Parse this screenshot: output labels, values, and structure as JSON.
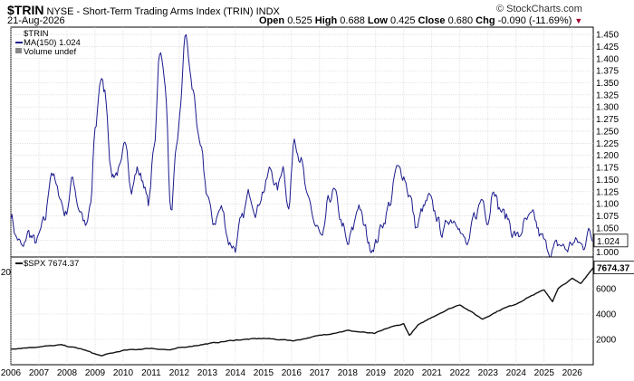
{
  "header": {
    "symbol": "$TRIN",
    "description": "NYSE - Short-Term Trading Arms Index (TRIN)",
    "exchange": "INDX",
    "brand": "© StockCharts.com",
    "date": "21-Aug-2026",
    "open_label": "Open",
    "open": "0.525",
    "high_label": "High",
    "high": "0.688",
    "low_label": "Low",
    "low": "0.425",
    "close_label": "Close",
    "close": "0.680",
    "chg_label": "Chg",
    "chg": "-0.090 (-11.69%)"
  },
  "colors": {
    "trin": "#1a1a8c",
    "spx": "#111111",
    "grid": "#d0d0d0",
    "arrow": "#a00030"
  },
  "chart_data": [
    {
      "type": "line",
      "panel": "upper",
      "legend": [
        "$TRIN",
        "MA(150) 1.024",
        "Volume undef"
      ],
      "ylim": [
        0.975,
        1.465
      ],
      "y_ticks": [
        1.0,
        1.025,
        1.05,
        1.075,
        1.1,
        1.125,
        1.15,
        1.175,
        1.2,
        1.225,
        1.25,
        1.275,
        1.3,
        1.325,
        1.35,
        1.375,
        1.4,
        1.425,
        1.45
      ],
      "last_value_label": "1.024",
      "x_ticks": [
        "2006",
        "2007",
        "2008",
        "2009",
        "2010",
        "2011",
        "2012",
        "2013",
        "2014",
        "2015",
        "2016",
        "2017",
        "2018",
        "2019",
        "2020",
        "2021",
        "2022",
        "2023",
        "2024",
        "2025",
        "2026"
      ],
      "xlim": [
        2006.0,
        2026.75
      ],
      "series": [
        {
          "name": "MA(150)",
          "x": [
            2006.0,
            2006.2,
            2006.45,
            2006.6,
            2006.9,
            2007.2,
            2007.45,
            2007.7,
            2007.95,
            2008.2,
            2008.45,
            2008.7,
            2008.85,
            2009.0,
            2009.2,
            2009.35,
            2009.6,
            2009.9,
            2010.1,
            2010.3,
            2010.5,
            2010.7,
            2010.9,
            2011.1,
            2011.3,
            2011.5,
            2011.7,
            2011.9,
            2012.05,
            2012.2,
            2012.5,
            2012.75,
            2013.0,
            2013.2,
            2013.5,
            2013.8,
            2014.0,
            2014.2,
            2014.5,
            2014.75,
            2015.0,
            2015.25,
            2015.5,
            2015.7,
            2015.9,
            2016.1,
            2016.3,
            2016.6,
            2016.9,
            2017.1,
            2017.3,
            2017.5,
            2017.8,
            2018.0,
            2018.15,
            2018.4,
            2018.6,
            2018.8,
            2019.0,
            2019.25,
            2019.5,
            2019.75,
            2020.0,
            2020.2,
            2020.45,
            2020.7,
            2020.9,
            2021.1,
            2021.4,
            2021.6,
            2021.9,
            2022.1,
            2022.3,
            2022.5,
            2022.8,
            2023.0,
            2023.2,
            2023.4,
            2023.7,
            2023.9,
            2024.1,
            2024.3,
            2024.6,
            2024.9,
            2025.1,
            2025.25,
            2025.4,
            2025.6,
            2025.8,
            2026.0,
            2026.2,
            2026.4,
            2026.55,
            2026.75
          ],
          "y": [
            1.08,
            1.03,
            1.005,
            1.04,
            1.02,
            1.06,
            1.17,
            1.12,
            1.08,
            1.15,
            1.09,
            1.05,
            1.1,
            1.25,
            1.36,
            1.33,
            1.16,
            1.17,
            1.23,
            1.13,
            1.17,
            1.15,
            1.1,
            1.21,
            1.42,
            1.35,
            1.08,
            1.2,
            1.3,
            1.45,
            1.33,
            1.21,
            1.12,
            1.06,
            1.09,
            1.02,
            1.01,
            1.06,
            1.12,
            1.09,
            1.13,
            1.17,
            1.13,
            1.18,
            1.09,
            1.24,
            1.2,
            1.1,
            1.05,
            1.02,
            1.1,
            1.125,
            1.06,
            1.01,
            1.04,
            1.1,
            1.05,
            1.01,
            1.02,
            1.06,
            1.1,
            1.17,
            1.16,
            1.12,
            1.05,
            1.09,
            1.11,
            1.08,
            1.04,
            1.07,
            1.07,
            1.03,
            1.01,
            1.07,
            1.11,
            1.07,
            1.14,
            1.09,
            1.07,
            1.04,
            1.03,
            1.06,
            1.07,
            1.03,
            1.01,
            1.0,
            1.01,
            1.015,
            1.005,
            1.02,
            1.02,
            1.01,
            1.045,
            1.024
          ]
        }
      ]
    },
    {
      "type": "line",
      "panel": "lower",
      "legend": [
        "$SPX 7674.37"
      ],
      "ylim": [
        0,
        8500
      ],
      "y_ticks": [
        2000,
        4000,
        6000
      ],
      "last_value_label": "7674.37",
      "x_ticks": [
        "2006",
        "2007",
        "2008",
        "2009",
        "2010",
        "2011",
        "2012",
        "2013",
        "2014",
        "2015",
        "2016",
        "2017",
        "2018",
        "2019",
        "2020",
        "2021",
        "2022",
        "2023",
        "2024",
        "2025",
        "2026"
      ],
      "xlim": [
        2006.0,
        2026.75
      ],
      "series": [
        {
          "name": "$SPX",
          "x": [
            2006.0,
            2007.0,
            2007.8,
            2008.5,
            2009.2,
            2010.0,
            2011.0,
            2011.7,
            2012.0,
            2013.0,
            2014.0,
            2015.0,
            2016.1,
            2017.0,
            2018.0,
            2018.95,
            2019.5,
            2020.0,
            2020.2,
            2020.5,
            2021.0,
            2021.5,
            2022.0,
            2022.8,
            2023.5,
            2024.0,
            2024.5,
            2025.0,
            2025.3,
            2025.5,
            2026.0,
            2026.3,
            2026.75
          ],
          "y": [
            1250,
            1420,
            1550,
            1250,
            700,
            1120,
            1300,
            1150,
            1330,
            1650,
            1950,
            2080,
            1900,
            2300,
            2700,
            2450,
            2950,
            3230,
            2300,
            3100,
            3750,
            4300,
            4750,
            3600,
            4400,
            4800,
            5400,
            5900,
            5000,
            6000,
            6800,
            6400,
            7674
          ]
        }
      ]
    }
  ]
}
